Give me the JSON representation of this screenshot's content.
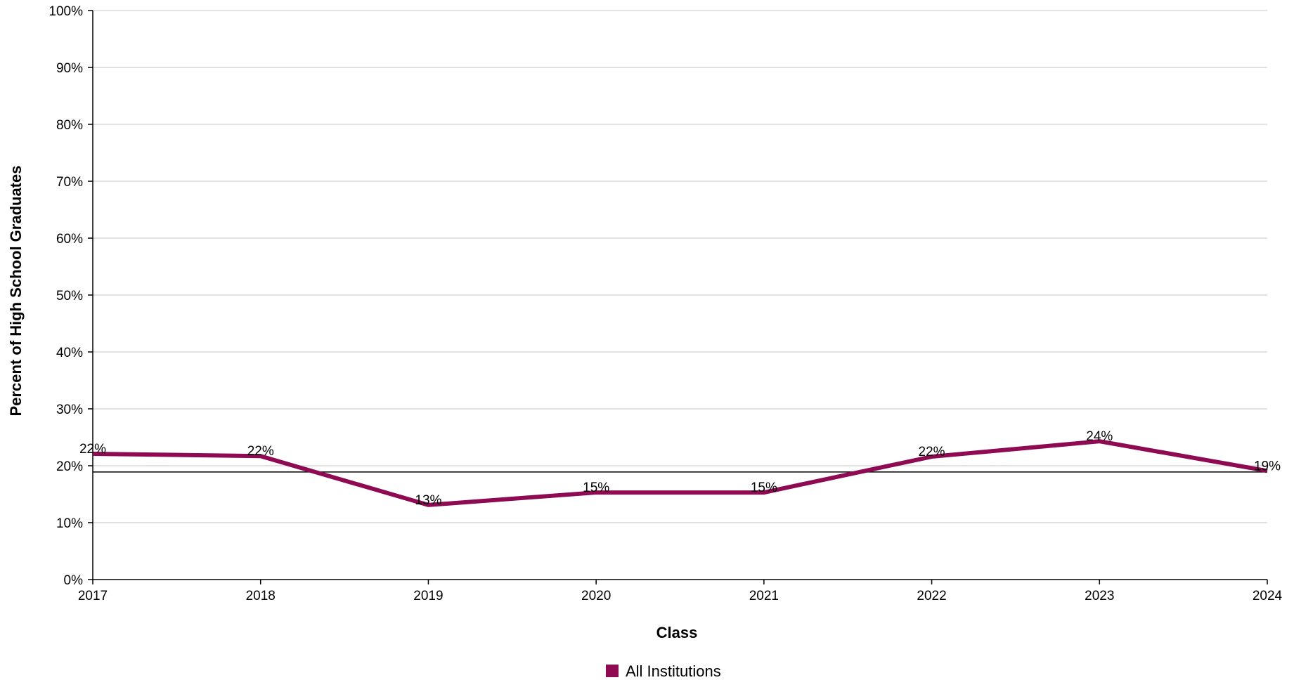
{
  "chart_data": {
    "type": "line",
    "categories": [
      "2017",
      "2018",
      "2019",
      "2020",
      "2021",
      "2022",
      "2023",
      "2024"
    ],
    "series": [
      {
        "name": "All Institutions",
        "values": [
          22.1,
          21.7,
          13.1,
          15.3,
          15.3,
          21.6,
          24.3,
          19.1
        ],
        "labels": [
          "22%",
          "22%",
          "13%",
          "15%",
          "15%",
          "22%",
          "24%",
          "19%"
        ],
        "color": "#8e0a52"
      }
    ],
    "reference_line": 18.9,
    "xlabel": "Class",
    "ylabel": "Percent of High School Graduates",
    "ylim": [
      0,
      100
    ],
    "yticks": [
      0,
      10,
      20,
      30,
      40,
      50,
      60,
      70,
      80,
      90,
      100
    ],
    "ytick_labels": [
      "0%",
      "10%",
      "20%",
      "30%",
      "40%",
      "50%",
      "60%",
      "70%",
      "80%",
      "90%",
      "100%"
    ],
    "grid": true,
    "legend_position": "bottom"
  }
}
